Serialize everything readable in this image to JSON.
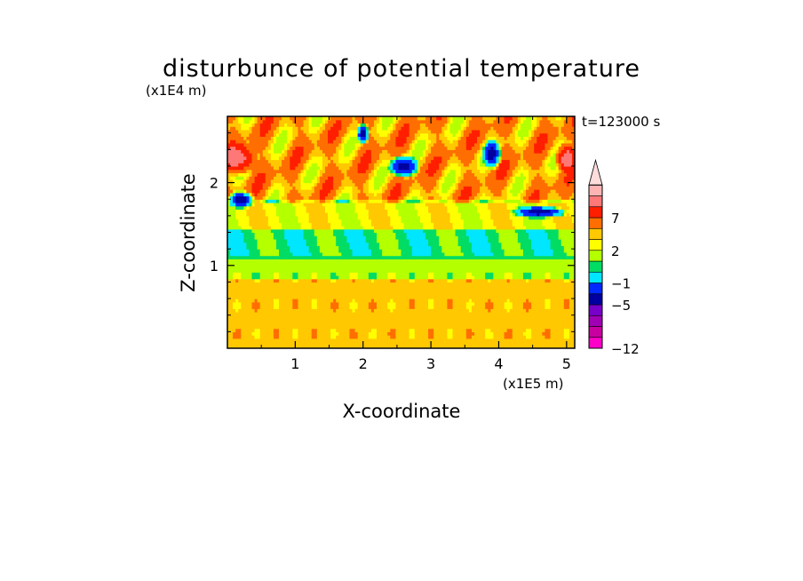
{
  "chart_data": {
    "type": "heatmap",
    "title": "disturbunce of potential temperature",
    "xlabel": "X-coordinate",
    "ylabel": "Z-coordinate",
    "x_unit": "(x1E5 m)",
    "y_unit": "(x1E4 m)",
    "time_label": "t=123000 s",
    "xlim": [
      0,
      5.12
    ],
    "ylim": [
      0,
      2.8
    ],
    "x_ticks": [
      {
        "value": 1,
        "label": "1"
      },
      {
        "value": 2,
        "label": "2"
      },
      {
        "value": 3,
        "label": "3"
      },
      {
        "value": 4,
        "label": "4"
      },
      {
        "value": 5,
        "label": "5"
      }
    ],
    "y_ticks": [
      {
        "value": 1,
        "label": "1"
      },
      {
        "value": 2,
        "label": "2"
      }
    ],
    "colorbar": {
      "extend": "max",
      "levels": [
        -12,
        -11,
        -9,
        -7,
        -5,
        -3,
        -1,
        0,
        1,
        2,
        3,
        5,
        7,
        9,
        11
      ],
      "colors": [
        "#ff00c8",
        "#c800a0",
        "#a000b4",
        "#7800c8",
        "#0000a0",
        "#0028ff",
        "#00e6ff",
        "#00dc64",
        "#b4ff00",
        "#ffff00",
        "#ffc800",
        "#ff6e00",
        "#ff1e00",
        "#ff7878",
        "#ffb4b4",
        "#ffdcdc"
      ],
      "label_ticks": [
        {
          "value": 7,
          "label": "7"
        },
        {
          "value": 2,
          "label": "2"
        },
        {
          "value": -1,
          "label": "−1"
        },
        {
          "value": -5,
          "label": "−5"
        },
        {
          "value": -12,
          "label": "−12"
        }
      ]
    },
    "field": {
      "x_range": [
        0,
        5.12
      ],
      "z_range": [
        0,
        2.8
      ],
      "description_bands": [
        {
          "z": [
            0.0,
            0.85
          ],
          "value": 2.5
        },
        {
          "z": [
            0.85,
            1.1
          ],
          "value": 0.5
        },
        {
          "z": [
            1.1,
            1.45
          ],
          "value": -0.5
        },
        {
          "z": [
            1.45,
            1.8
          ],
          "value": 1.5
        },
        {
          "z": [
            1.8,
            2.8
          ],
          "value": 3.0
        }
      ],
      "features": [
        {
          "x": 0.15,
          "z": 2.3,
          "rx": 0.3,
          "rz": 0.22,
          "value": 8
        },
        {
          "x": 0.2,
          "z": 1.8,
          "rx": 0.22,
          "rz": 0.12,
          "value": -6
        },
        {
          "x": 2.6,
          "z": 2.2,
          "rx": 0.25,
          "rz": 0.15,
          "value": -6
        },
        {
          "x": 2.0,
          "z": 2.6,
          "rx": 0.1,
          "rz": 0.14,
          "value": -6
        },
        {
          "x": 3.9,
          "z": 2.35,
          "rx": 0.15,
          "rz": 0.2,
          "value": -6
        },
        {
          "x": 5.0,
          "z": 2.3,
          "rx": 0.18,
          "rz": 0.2,
          "value": 8
        },
        {
          "x": 4.6,
          "z": 1.65,
          "rx": 0.45,
          "rz": 0.08,
          "value": -6
        }
      ]
    }
  }
}
